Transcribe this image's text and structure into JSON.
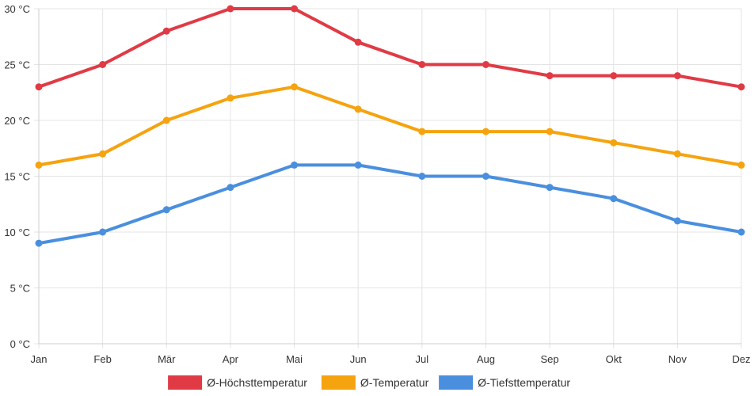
{
  "chart_data": {
    "type": "line",
    "categories": [
      "Jan",
      "Feb",
      "Mär",
      "Apr",
      "Mai",
      "Jun",
      "Jul",
      "Aug",
      "Sep",
      "Okt",
      "Nov",
      "Dez"
    ],
    "series": [
      {
        "name": "Ø-Höchsttemperatur",
        "color": "#e03b45",
        "values": [
          23,
          25,
          28,
          30,
          30,
          27,
          25,
          25,
          24,
          24,
          24,
          23
        ]
      },
      {
        "name": "Ø-Temperatur",
        "color": "#f5a30f",
        "values": [
          16,
          17,
          20,
          22,
          23,
          21,
          19,
          19,
          19,
          18,
          17,
          16
        ]
      },
      {
        "name": "Ø-Tiefsttemperatur",
        "color": "#4a8fde",
        "values": [
          9,
          10,
          12,
          14,
          16,
          16,
          15,
          15,
          14,
          13,
          11,
          10
        ]
      }
    ],
    "yticks": [
      0,
      5,
      10,
      15,
      20,
      25,
      30
    ],
    "ytick_labels": [
      "0 °C",
      "5 °C",
      "10 °C",
      "15 °C",
      "20 °C",
      "25 °C",
      "30 °C"
    ],
    "ylim": [
      0,
      30
    ],
    "grid": true,
    "legend_position": "bottom",
    "title": "",
    "xlabel": "",
    "ylabel": ""
  }
}
